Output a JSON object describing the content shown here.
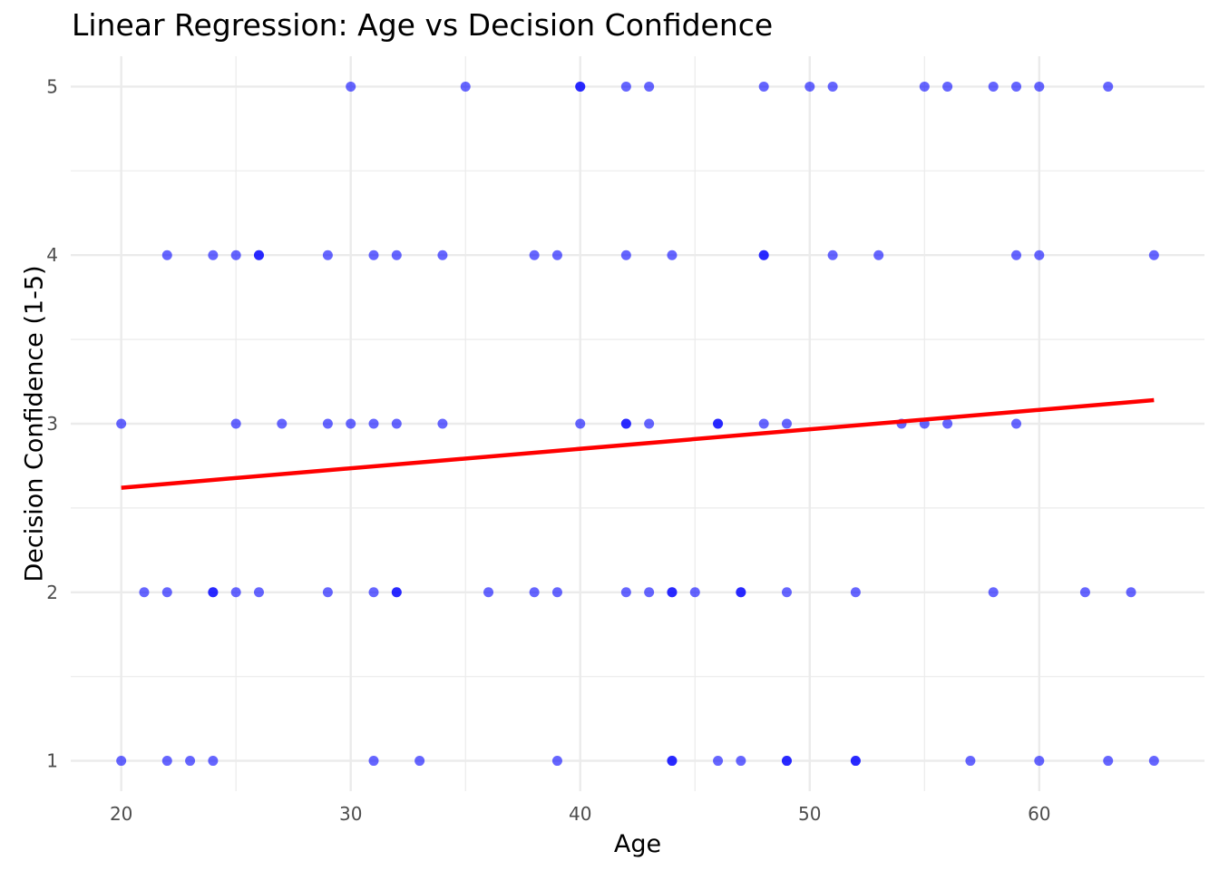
{
  "chart_data": {
    "type": "scatter",
    "title": "Linear Regression: Age vs Decision Confidence",
    "xlabel": "Age",
    "ylabel": "Decision Confidence (1-5)",
    "xlim": [
      17.8,
      67.2
    ],
    "ylim": [
      0.82,
      5.18
    ],
    "x_ticks": [
      20,
      30,
      40,
      50,
      60
    ],
    "y_ticks": [
      1,
      2,
      3,
      4,
      5
    ],
    "grid": true,
    "legend": "none",
    "point_color": "#0000ff",
    "line_color": "#ff0000",
    "points": [
      {
        "x": 30,
        "y": 5
      },
      {
        "x": 35,
        "y": 5
      },
      {
        "x": 40,
        "y": 5
      },
      {
        "x": 40,
        "y": 5
      },
      {
        "x": 42,
        "y": 5
      },
      {
        "x": 43,
        "y": 5
      },
      {
        "x": 48,
        "y": 5
      },
      {
        "x": 50,
        "y": 5
      },
      {
        "x": 51,
        "y": 5
      },
      {
        "x": 55,
        "y": 5
      },
      {
        "x": 56,
        "y": 5
      },
      {
        "x": 58,
        "y": 5
      },
      {
        "x": 59,
        "y": 5
      },
      {
        "x": 60,
        "y": 5
      },
      {
        "x": 63,
        "y": 5
      },
      {
        "x": 22,
        "y": 4
      },
      {
        "x": 24,
        "y": 4
      },
      {
        "x": 25,
        "y": 4
      },
      {
        "x": 26,
        "y": 4
      },
      {
        "x": 26,
        "y": 4
      },
      {
        "x": 29,
        "y": 4
      },
      {
        "x": 31,
        "y": 4
      },
      {
        "x": 32,
        "y": 4
      },
      {
        "x": 34,
        "y": 4
      },
      {
        "x": 38,
        "y": 4
      },
      {
        "x": 39,
        "y": 4
      },
      {
        "x": 42,
        "y": 4
      },
      {
        "x": 44,
        "y": 4
      },
      {
        "x": 48,
        "y": 4
      },
      {
        "x": 48,
        "y": 4
      },
      {
        "x": 51,
        "y": 4
      },
      {
        "x": 53,
        "y": 4
      },
      {
        "x": 59,
        "y": 4
      },
      {
        "x": 60,
        "y": 4
      },
      {
        "x": 65,
        "y": 4
      },
      {
        "x": 20,
        "y": 3
      },
      {
        "x": 25,
        "y": 3
      },
      {
        "x": 27,
        "y": 3
      },
      {
        "x": 29,
        "y": 3
      },
      {
        "x": 30,
        "y": 3
      },
      {
        "x": 31,
        "y": 3
      },
      {
        "x": 32,
        "y": 3
      },
      {
        "x": 34,
        "y": 3
      },
      {
        "x": 40,
        "y": 3
      },
      {
        "x": 42,
        "y": 3
      },
      {
        "x": 42,
        "y": 3
      },
      {
        "x": 43,
        "y": 3
      },
      {
        "x": 46,
        "y": 3
      },
      {
        "x": 46,
        "y": 3
      },
      {
        "x": 48,
        "y": 3
      },
      {
        "x": 49,
        "y": 3
      },
      {
        "x": 54,
        "y": 3
      },
      {
        "x": 55,
        "y": 3
      },
      {
        "x": 56,
        "y": 3
      },
      {
        "x": 59,
        "y": 3
      },
      {
        "x": 21,
        "y": 2
      },
      {
        "x": 22,
        "y": 2
      },
      {
        "x": 24,
        "y": 2
      },
      {
        "x": 24,
        "y": 2
      },
      {
        "x": 25,
        "y": 2
      },
      {
        "x": 26,
        "y": 2
      },
      {
        "x": 29,
        "y": 2
      },
      {
        "x": 31,
        "y": 2
      },
      {
        "x": 32,
        "y": 2
      },
      {
        "x": 32,
        "y": 2
      },
      {
        "x": 36,
        "y": 2
      },
      {
        "x": 38,
        "y": 2
      },
      {
        "x": 39,
        "y": 2
      },
      {
        "x": 42,
        "y": 2
      },
      {
        "x": 43,
        "y": 2
      },
      {
        "x": 44,
        "y": 2
      },
      {
        "x": 44,
        "y": 2
      },
      {
        "x": 45,
        "y": 2
      },
      {
        "x": 47,
        "y": 2
      },
      {
        "x": 47,
        "y": 2
      },
      {
        "x": 49,
        "y": 2
      },
      {
        "x": 52,
        "y": 2
      },
      {
        "x": 58,
        "y": 2
      },
      {
        "x": 62,
        "y": 2
      },
      {
        "x": 64,
        "y": 2
      },
      {
        "x": 20,
        "y": 1
      },
      {
        "x": 22,
        "y": 1
      },
      {
        "x": 23,
        "y": 1
      },
      {
        "x": 24,
        "y": 1
      },
      {
        "x": 31,
        "y": 1
      },
      {
        "x": 33,
        "y": 1
      },
      {
        "x": 39,
        "y": 1
      },
      {
        "x": 44,
        "y": 1
      },
      {
        "x": 44,
        "y": 1
      },
      {
        "x": 46,
        "y": 1
      },
      {
        "x": 47,
        "y": 1
      },
      {
        "x": 49,
        "y": 1
      },
      {
        "x": 49,
        "y": 1
      },
      {
        "x": 52,
        "y": 1
      },
      {
        "x": 52,
        "y": 1
      },
      {
        "x": 57,
        "y": 1
      },
      {
        "x": 60,
        "y": 1
      },
      {
        "x": 63,
        "y": 1
      },
      {
        "x": 65,
        "y": 1
      }
    ],
    "regression_line": {
      "x": [
        20,
        65
      ],
      "y": [
        2.62,
        3.14
      ]
    }
  }
}
